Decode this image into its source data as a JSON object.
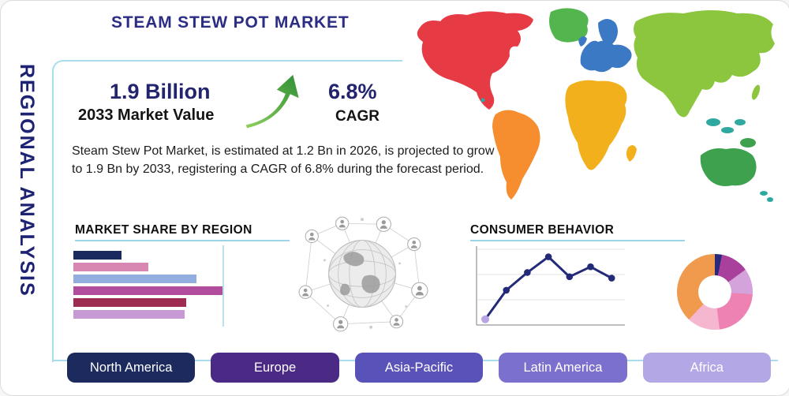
{
  "header": {
    "title": "STEAM STEW POT MARKET"
  },
  "sidebar": {
    "label": "REGIONAL ANALYSIS"
  },
  "stats": {
    "market_value": "1.9 Billion",
    "market_value_label": "2033 Market Value",
    "cagr_value": "6.8%",
    "cagr_label": "CAGR"
  },
  "description": "Steam Stew Pot Market, is estimated at 1.2 Bn in 2026, is projected to grow to 1.9 Bn by 2033, registering a CAGR of 6.8% during the forecast period.",
  "sections": {
    "market_share_title": "MARKET SHARE BY REGION",
    "consumer_behavior_title": "CONSUMER BEHAVIOR"
  },
  "region_buttons": [
    {
      "label": "North America",
      "color": "#1c2a5e"
    },
    {
      "label": "Europe",
      "color": "#4b2a85"
    },
    {
      "label": "Asia-Pacific",
      "color": "#5952b8"
    },
    {
      "label": "Latin America",
      "color": "#7c70ce"
    },
    {
      "label": "Africa",
      "color": "#b3a7e6"
    }
  ],
  "map_regions": [
    {
      "name": "north-america",
      "color": "#e63a44"
    },
    {
      "name": "greenland",
      "color": "#52b54e"
    },
    {
      "name": "south-america",
      "color": "#f68d2e"
    },
    {
      "name": "europe",
      "color": "#3c79c4"
    },
    {
      "name": "africa",
      "color": "#f2b01d"
    },
    {
      "name": "asia",
      "color": "#8cc63e"
    },
    {
      "name": "oceania",
      "color": "#3da14e"
    },
    {
      "name": "islands",
      "color": "#2fa9a0"
    }
  ],
  "colors": {
    "accent_teal": "#9bd6e6",
    "navy_text": "#22246e",
    "arrow_green": "#57aa3c"
  },
  "chart_data": [
    {
      "type": "bar",
      "title": "MARKET SHARE BY REGION",
      "orientation": "horizontal",
      "categories": [
        "",
        "",
        "",
        "",
        "",
        ""
      ],
      "values": [
        32,
        50,
        82,
        100,
        75,
        74
      ],
      "xlim": [
        0,
        100
      ],
      "grid": false,
      "colors": [
        "#1b2a5e",
        "#d887b2",
        "#92aede",
        "#b24d9e",
        "#9e2b52",
        "#c79ad6"
      ]
    },
    {
      "type": "line",
      "title": "CONSUMER BEHAVIOR",
      "x": [
        1,
        2,
        3,
        4,
        5,
        6,
        7
      ],
      "y": [
        8,
        49,
        74,
        96,
        68,
        82,
        66
      ],
      "ylim": [
        0,
        100
      ],
      "grid": true,
      "line_color": "#232a78",
      "first_point_color": "#b7a6e3"
    },
    {
      "type": "pie",
      "style": "donut",
      "segments": [
        {
          "color": "#2a2a7c",
          "value": 3
        },
        {
          "color": "#a8409c",
          "value": 12
        },
        {
          "color": "#d4a3dc",
          "value": 11
        },
        {
          "color": "#ee82b2",
          "value": 22
        },
        {
          "color": "#f5b6d0",
          "value": 14
        },
        {
          "color": "#f09a4e",
          "value": 38
        }
      ]
    }
  ]
}
